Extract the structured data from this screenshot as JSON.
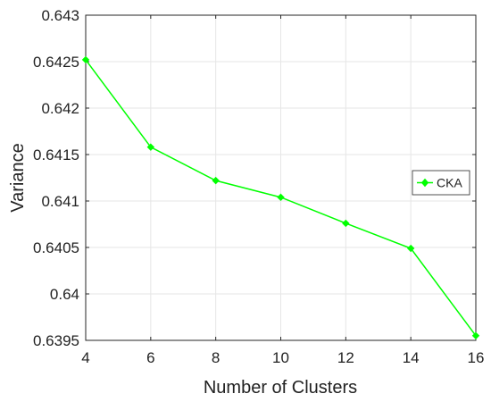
{
  "chart_data": {
    "type": "line",
    "title": "",
    "xlabel": "Number of Clusters",
    "ylabel": "Variance",
    "xlim": [
      4,
      16
    ],
    "ylim": [
      0.6395,
      0.643
    ],
    "x_ticks": [
      4,
      6,
      8,
      10,
      12,
      14,
      16
    ],
    "x_tick_labels": [
      "4",
      "6",
      "8",
      "10",
      "12",
      "14",
      "16"
    ],
    "y_ticks": [
      0.6395,
      0.64,
      0.6405,
      0.641,
      0.6415,
      0.642,
      0.6425,
      0.643
    ],
    "y_tick_labels": [
      "0.6395",
      "0.64",
      "0.6405",
      "0.641",
      "0.6415",
      "0.642",
      "0.6425",
      "0.643"
    ],
    "grid": true,
    "legend_position": "center-right",
    "series": [
      {
        "name": "CKA",
        "color": "#00ff00",
        "marker": "diamond",
        "x": [
          4,
          6,
          8,
          10,
          12,
          14,
          16
        ],
        "y": [
          0.64252,
          0.64158,
          0.64122,
          0.64104,
          0.64076,
          0.64049,
          0.63955
        ]
      }
    ]
  }
}
